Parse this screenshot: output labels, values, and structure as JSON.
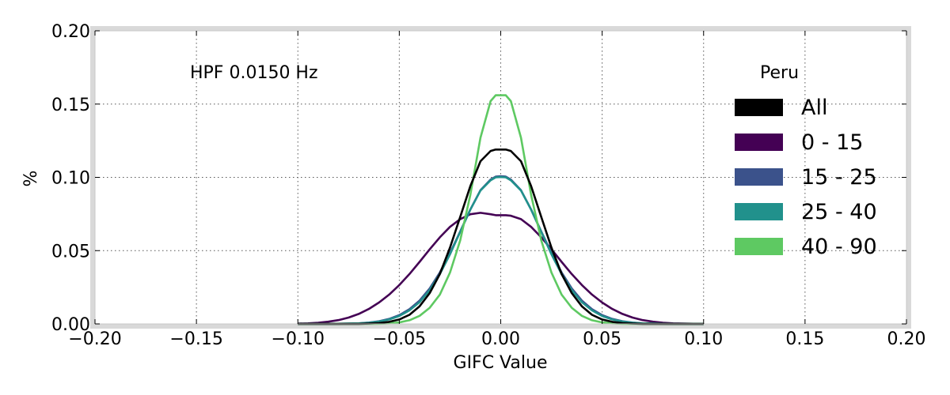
{
  "chart_data": {
    "type": "line",
    "xlabel": "GIFC Value",
    "ylabel": "%",
    "xlim": [
      -0.2,
      0.2
    ],
    "ylim": [
      0,
      0.2
    ],
    "xticks": [
      -0.2,
      -0.15,
      -0.1,
      -0.05,
      0.0,
      0.05,
      0.1,
      0.15,
      0.2
    ],
    "xtick_labels": [
      "−0.20",
      "−0.15",
      "−0.10",
      "−0.05",
      "0.00",
      "0.05",
      "0.10",
      "0.15",
      "0.20"
    ],
    "yticks": [
      0.0,
      0.05,
      0.1,
      0.15,
      0.2
    ],
    "ytick_labels": [
      "0.00",
      "0.05",
      "0.10",
      "0.15",
      "0.20"
    ],
    "grid": true,
    "annotation": "HPF 0.0150 Hz",
    "legend": {
      "title": "Peru",
      "placement": "upper-right"
    },
    "x": [
      -0.1,
      -0.095,
      -0.09,
      -0.085,
      -0.08,
      -0.075,
      -0.07,
      -0.065,
      -0.06,
      -0.055,
      -0.05,
      -0.045,
      -0.04,
      -0.035,
      -0.03,
      -0.025,
      -0.02,
      -0.015,
      -0.01,
      -0.005,
      -0.0025,
      0.0,
      0.0025,
      0.005,
      0.01,
      0.015,
      0.02,
      0.025,
      0.03,
      0.035,
      0.04,
      0.045,
      0.05,
      0.055,
      0.06,
      0.065,
      0.07,
      0.075,
      0.08,
      0.085,
      0.09,
      0.095,
      0.1
    ],
    "series": [
      {
        "name": "All",
        "color": "#000000",
        "values": [
          0.0,
          0.0,
          0.0,
          0.0,
          0.0,
          0.0,
          0.0,
          0.0002,
          0.0006,
          0.0014,
          0.003,
          0.0062,
          0.012,
          0.021,
          0.034,
          0.052,
          0.073,
          0.094,
          0.111,
          0.118,
          0.119,
          0.119,
          0.119,
          0.118,
          0.111,
          0.094,
          0.073,
          0.052,
          0.034,
          0.021,
          0.012,
          0.0062,
          0.003,
          0.0014,
          0.0006,
          0.0002,
          0.0,
          0.0,
          0.0,
          0.0,
          0.0,
          0.0,
          0.0
        ]
      },
      {
        "name": "0 - 15",
        "color": "#440154",
        "values": [
          0.0002,
          0.0004,
          0.0008,
          0.0015,
          0.0026,
          0.0043,
          0.0068,
          0.0102,
          0.0146,
          0.02,
          0.0265,
          0.034,
          0.0423,
          0.0509,
          0.0591,
          0.0662,
          0.0715,
          0.0748,
          0.0758,
          0.0748,
          0.0742,
          0.0742,
          0.0742,
          0.0738,
          0.0715,
          0.0662,
          0.0591,
          0.0509,
          0.0423,
          0.034,
          0.0265,
          0.02,
          0.0146,
          0.0102,
          0.0068,
          0.0043,
          0.0026,
          0.0015,
          0.0008,
          0.0004,
          0.0002,
          0.0001,
          0.0
        ]
      },
      {
        "name": "15 - 25",
        "color": "#3b528b",
        "values": [
          0.0,
          0.0,
          0.0,
          0.0,
          0.0001,
          0.0002,
          0.0004,
          0.0009,
          0.0018,
          0.0034,
          0.006,
          0.01,
          0.0159,
          0.0242,
          0.0351,
          0.0483,
          0.063,
          0.078,
          0.0912,
          0.0985,
          0.1005,
          0.1008,
          0.1005,
          0.0985,
          0.0912,
          0.078,
          0.063,
          0.0483,
          0.0351,
          0.0242,
          0.0159,
          0.01,
          0.006,
          0.0034,
          0.0018,
          0.0009,
          0.0004,
          0.0002,
          0.0001,
          0.0,
          0.0,
          0.0,
          0.0
        ]
      },
      {
        "name": "25 - 40",
        "color": "#21918c",
        "values": [
          0.0,
          0.0,
          0.0,
          0.0,
          0.0001,
          0.0002,
          0.0004,
          0.0008,
          0.0016,
          0.003,
          0.0054,
          0.0092,
          0.0148,
          0.023,
          0.034,
          0.0475,
          0.0628,
          0.078,
          0.091,
          0.098,
          0.1,
          0.1002,
          0.1,
          0.098,
          0.091,
          0.078,
          0.0628,
          0.0475,
          0.034,
          0.023,
          0.0148,
          0.0092,
          0.0054,
          0.003,
          0.0016,
          0.0008,
          0.0004,
          0.0002,
          0.0001,
          0.0,
          0.0,
          0.0,
          0.0
        ]
      },
      {
        "name": "40 - 90",
        "color": "#5ec962",
        "values": [
          0.0,
          0.0,
          0.0,
          0.0,
          0.0,
          0.0,
          0.0,
          0.0,
          0.0001,
          0.0004,
          0.001,
          0.0025,
          0.0055,
          0.011,
          0.02,
          0.035,
          0.057,
          0.088,
          0.127,
          0.152,
          0.156,
          0.156,
          0.156,
          0.152,
          0.127,
          0.088,
          0.057,
          0.035,
          0.02,
          0.011,
          0.0055,
          0.0025,
          0.001,
          0.0004,
          0.0001,
          0.0,
          0.0,
          0.0,
          0.0,
          0.0,
          0.0,
          0.0,
          0.0
        ]
      }
    ]
  }
}
